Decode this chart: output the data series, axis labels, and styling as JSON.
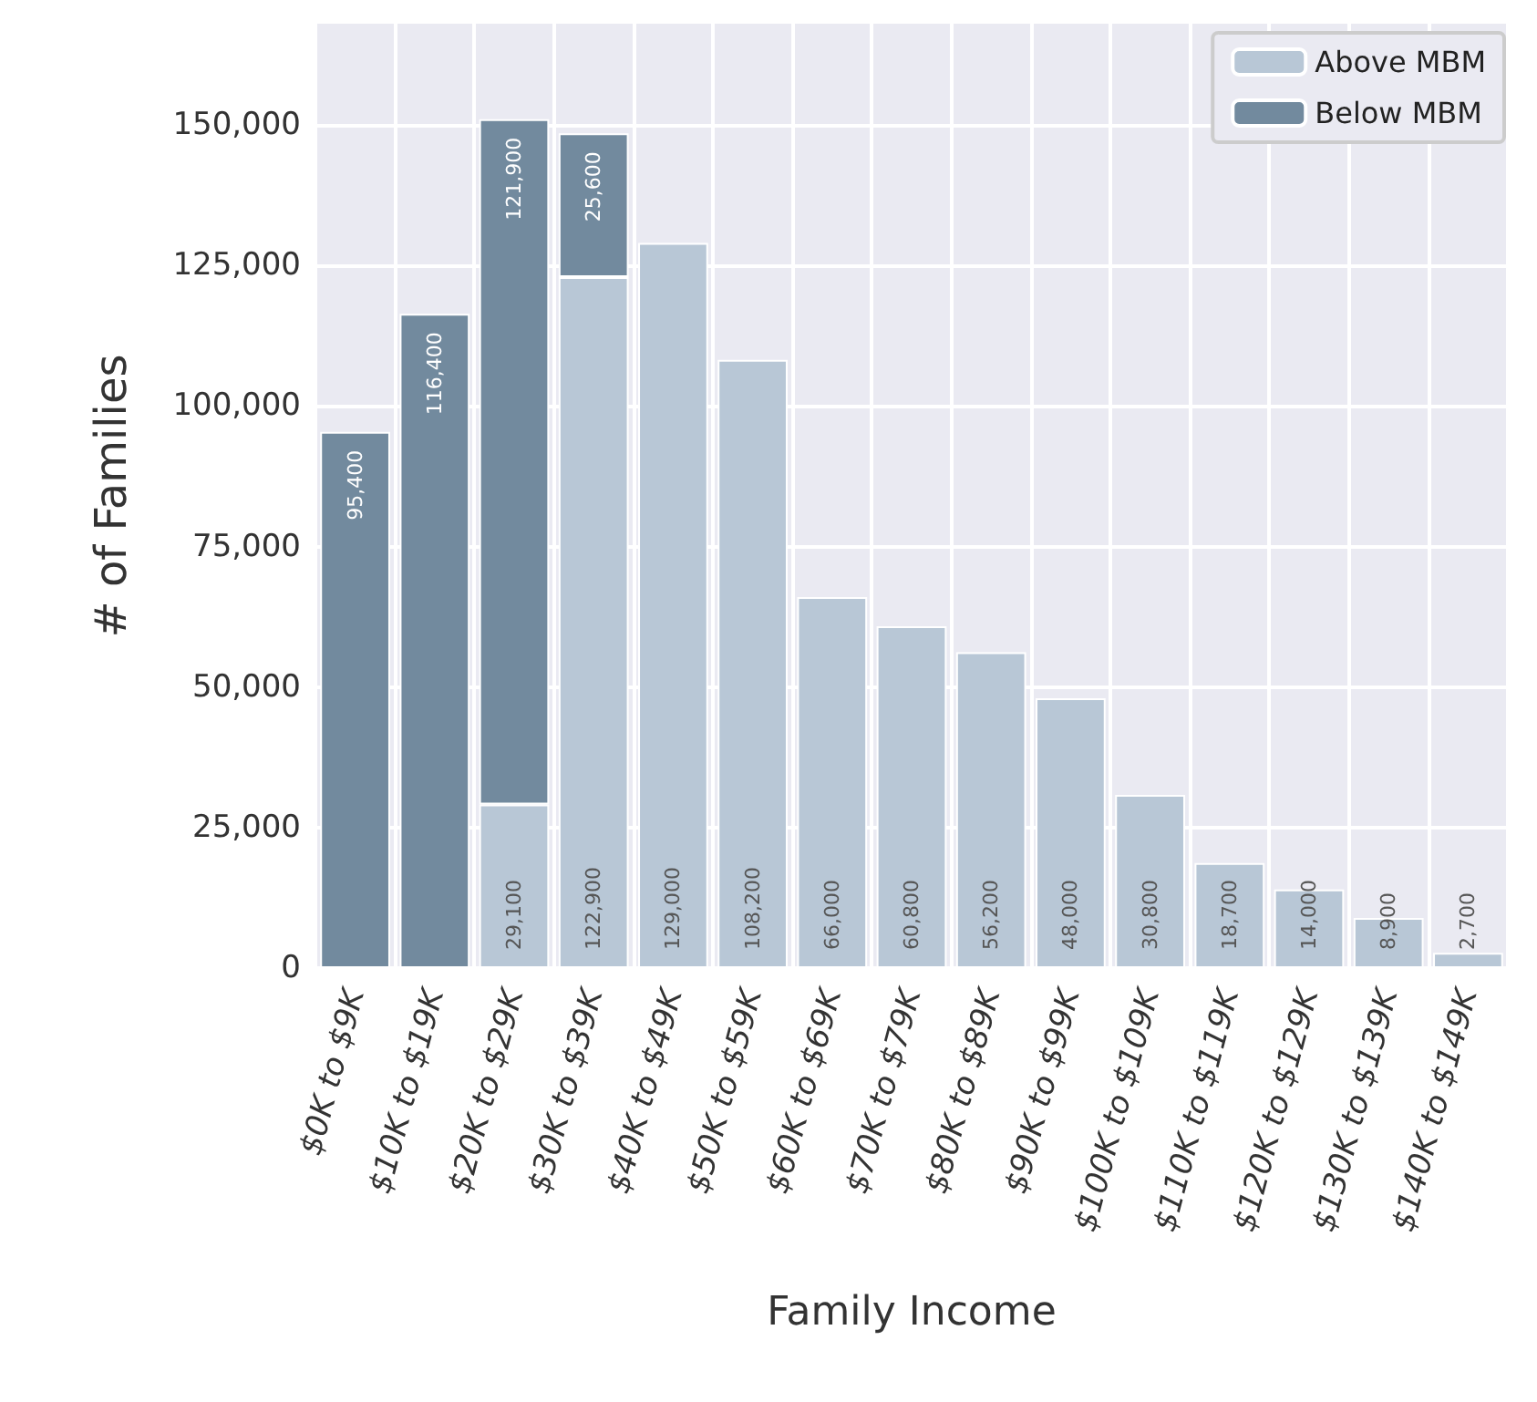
{
  "chart_data": {
    "type": "bar",
    "stacked": true,
    "xlabel": "Family Income",
    "ylabel": "# of Families",
    "categories": [
      "$0K to $9K",
      "$10K to $19K",
      "$20K to $29K",
      "$30K to $39K",
      "$40K to $49K",
      "$50K to $59K",
      "$60K to $69K",
      "$70K to $79K",
      "$80K to $89K",
      "$90K to $99K",
      "$100K to $109K",
      "$110K to $119K",
      "$120K to $129K",
      "$130K to $139K",
      "$140K to $149K"
    ],
    "series": [
      {
        "name": "Above MBM",
        "color": "#b8c7d6",
        "values": [
          null,
          null,
          29100,
          122900,
          129000,
          108200,
          66000,
          60800,
          56200,
          48000,
          30800,
          18700,
          14000,
          8900,
          2700
        ],
        "value_labels": [
          null,
          null,
          "29,100",
          "122,900",
          "129,000",
          "108,200",
          "66,000",
          "60,800",
          "56,200",
          "48,000",
          "30,800",
          "18,700",
          "14,000",
          "8,900",
          "2,700"
        ]
      },
      {
        "name": "Below MBM",
        "color": "#728a9e",
        "values": [
          95400,
          116400,
          121900,
          25600,
          null,
          null,
          null,
          null,
          null,
          null,
          null,
          null,
          null,
          null,
          null
        ],
        "value_labels": [
          "95,400",
          "116,400",
          "121,900",
          "25,600",
          null,
          null,
          null,
          null,
          null,
          null,
          null,
          null,
          null,
          null,
          null
        ]
      }
    ],
    "ylim": [
      0,
      168000
    ],
    "yticks": [
      0,
      {
        "value": 25000,
        "label": "25,000"
      },
      {
        "value": 50000,
        "label": "50,000"
      },
      {
        "value": 75000,
        "label": "75,000"
      },
      {
        "value": 100000,
        "label": "100,000"
      },
      {
        "value": 125000,
        "label": "125,000"
      },
      {
        "value": 150000,
        "label": "150,000"
      }
    ],
    "grid": true,
    "legend": "top right"
  }
}
